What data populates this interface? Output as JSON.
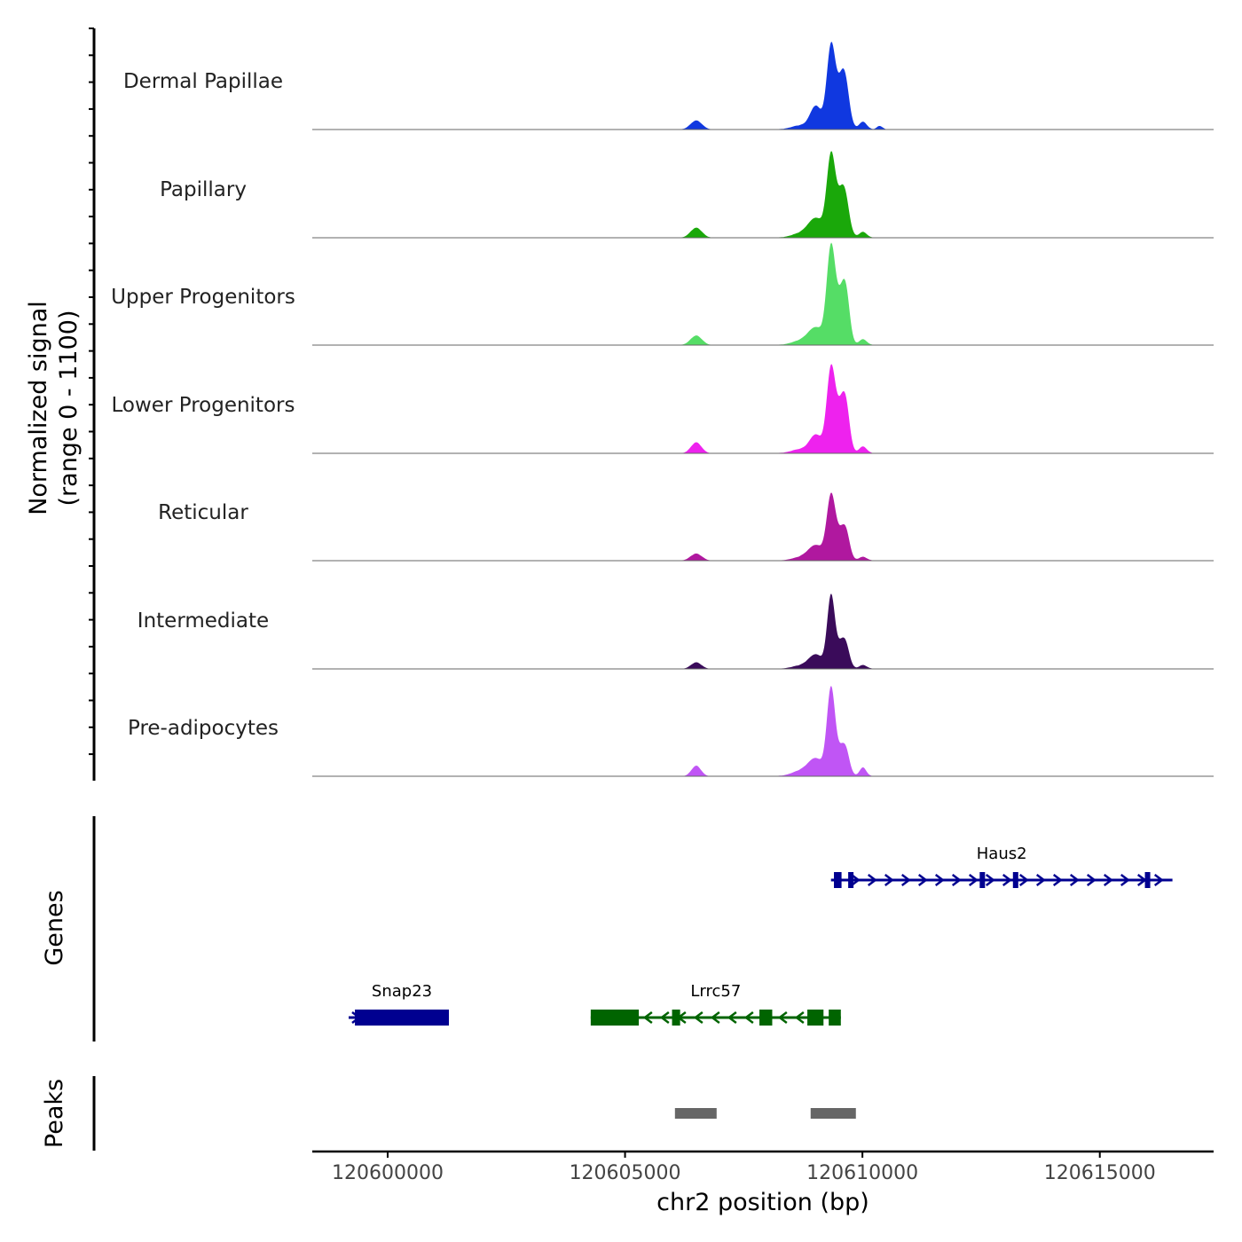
{
  "chart_data": {
    "type": "area",
    "title": "",
    "ylabel": "Normalized signal",
    "ylabel_range": "(range 0 - 1100)",
    "ylim": [
      0,
      1100
    ],
    "xlabel": "chr2 position (bp)",
    "xlim": [
      120598412,
      120617397
    ],
    "xticks": [
      120600000,
      120605000,
      120610000,
      120615000
    ],
    "xtick_labels": [
      "120600000",
      "120605000",
      "120610000",
      "120615000"
    ],
    "tracks": [
      {
        "name": "Dermal Papillae",
        "color": "#1038e0",
        "peaks": [
          [
            120606499,
            90,
            120
          ],
          [
            120609020,
            230,
            120
          ],
          [
            120609338,
            825,
            90
          ],
          [
            120609550,
            350,
            110
          ],
          [
            120609638,
            320,
            90
          ],
          [
            120610010,
            80,
            80
          ],
          [
            120610365,
            35,
            60
          ],
          [
            120608700,
            40,
            200
          ]
        ]
      },
      {
        "name": "Papillary",
        "color": "#1aa80a",
        "peaks": [
          [
            120606499,
            100,
            120
          ],
          [
            120609020,
            190,
            160
          ],
          [
            120609338,
            800,
            90
          ],
          [
            120609550,
            330,
            110
          ],
          [
            120609638,
            250,
            90
          ],
          [
            120610010,
            60,
            80
          ],
          [
            120608700,
            40,
            200
          ]
        ]
      },
      {
        "name": "Upper Progenitors",
        "color": "#55dd66",
        "peaks": [
          [
            120606499,
            95,
            120
          ],
          [
            120609020,
            170,
            160
          ],
          [
            120609338,
            970,
            90
          ],
          [
            120609550,
            420,
            100
          ],
          [
            120609660,
            380,
            80
          ],
          [
            120610010,
            60,
            80
          ],
          [
            120608700,
            40,
            200
          ]
        ]
      },
      {
        "name": "Lower Progenitors",
        "color": "#ee22ee",
        "peaks": [
          [
            120606499,
            110,
            110
          ],
          [
            120609020,
            180,
            130
          ],
          [
            120609338,
            850,
            90
          ],
          [
            120609550,
            420,
            100
          ],
          [
            120609660,
            330,
            80
          ],
          [
            120610010,
            70,
            80
          ],
          [
            120608700,
            40,
            200
          ]
        ]
      },
      {
        "name": "Reticular",
        "color": "#b0189f",
        "peaks": [
          [
            120606499,
            70,
            120
          ],
          [
            120609020,
            150,
            160
          ],
          [
            120609338,
            630,
            90
          ],
          [
            120609550,
            250,
            110
          ],
          [
            120609660,
            180,
            80
          ],
          [
            120610010,
            40,
            80
          ],
          [
            120608700,
            30,
            200
          ]
        ]
      },
      {
        "name": "Intermediate",
        "color": "#3a0b5a",
        "peaks": [
          [
            120606499,
            65,
            110
          ],
          [
            120609020,
            140,
            150
          ],
          [
            120609338,
            725,
            80
          ],
          [
            120609550,
            230,
            100
          ],
          [
            120609660,
            150,
            80
          ],
          [
            120610010,
            40,
            80
          ],
          [
            120608700,
            30,
            200
          ]
        ]
      },
      {
        "name": "Pre-adipocytes",
        "color": "#c055f5",
        "peaks": [
          [
            120606499,
            105,
            100
          ],
          [
            120609020,
            170,
            160
          ],
          [
            120609338,
            870,
            85
          ],
          [
            120609550,
            230,
            100
          ],
          [
            120609660,
            170,
            80
          ],
          [
            120610010,
            90,
            70
          ],
          [
            120608700,
            50,
            200
          ]
        ]
      }
    ],
    "genes_label": "Genes",
    "genes": [
      {
        "name": "Haus2",
        "strand": "+",
        "start": 120609338,
        "end": 120616530,
        "color": "#000090",
        "row": 0,
        "exons": [
          [
            120609400,
            120609560
          ],
          [
            120609700,
            120609780
          ],
          [
            120612470,
            120612560
          ],
          [
            120613170,
            120613260
          ],
          [
            120615950,
            120616060
          ]
        ]
      },
      {
        "name": "Snap23",
        "strand": "+",
        "start": 120599178,
        "end": 120601290,
        "color": "#000090",
        "row": 1,
        "exons": [
          [
            120599310,
            120601290
          ]
        ]
      },
      {
        "name": "Lrrc57",
        "strand": "-",
        "start": 120604277,
        "end": 120609545,
        "color": "#006400",
        "row": 1,
        "exons": [
          [
            120604277,
            120605290
          ],
          [
            120605990,
            120606160
          ],
          [
            120607830,
            120608100
          ],
          [
            120608840,
            120609180
          ],
          [
            120609290,
            120609545
          ]
        ]
      }
    ],
    "peaks_label": "Peaks",
    "peaks": [
      [
        120606051,
        120606929
      ],
      [
        120608909,
        120609862
      ]
    ]
  }
}
